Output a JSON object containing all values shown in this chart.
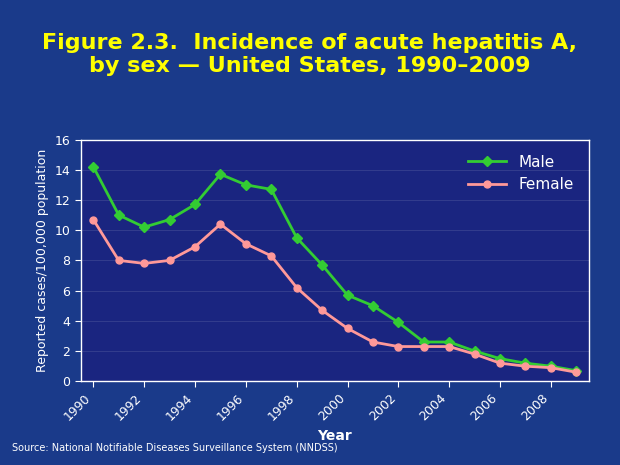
{
  "title_line1": "Figure 2.3.  Incidence of acute hepatitis A,",
  "title_line2": "by sex — United States, 1990–2009",
  "xlabel": "Year",
  "ylabel": "Reported cases/100,000 population",
  "years": [
    1990,
    1991,
    1992,
    1993,
    1994,
    1995,
    1996,
    1997,
    1998,
    1999,
    2000,
    2001,
    2002,
    2003,
    2004,
    2005,
    2006,
    2007,
    2008,
    2009
  ],
  "male": [
    14.2,
    11.0,
    10.2,
    10.7,
    11.7,
    13.7,
    13.0,
    12.7,
    9.5,
    7.7,
    5.7,
    5.0,
    3.9,
    2.6,
    2.6,
    2.0,
    1.5,
    1.2,
    1.0,
    0.7
  ],
  "female": [
    10.7,
    8.0,
    7.8,
    8.0,
    8.9,
    10.4,
    9.1,
    8.3,
    6.2,
    4.7,
    3.5,
    2.6,
    2.3,
    2.3,
    2.3,
    1.8,
    1.2,
    1.0,
    0.9,
    0.6
  ],
  "male_color": "#33cc33",
  "female_color": "#ff9999",
  "male_marker": "D",
  "female_marker": "o",
  "bg_outer": "#1a3a8a",
  "plot_bg": "#1a2580",
  "text_color": "#ffff00",
  "axis_text_color": "#ffffff",
  "source_text": "Source: National Notifiable Diseases Surveillance System (NNDSS)",
  "ylim": [
    0,
    16
  ],
  "yticks": [
    0,
    2,
    4,
    6,
    8,
    10,
    12,
    14,
    16
  ],
  "xtick_years": [
    1990,
    1992,
    1994,
    1996,
    1998,
    2000,
    2002,
    2004,
    2006,
    2008
  ],
  "title_fontsize": 16,
  "axis_label_fontsize": 10,
  "tick_fontsize": 9,
  "legend_fontsize": 11
}
